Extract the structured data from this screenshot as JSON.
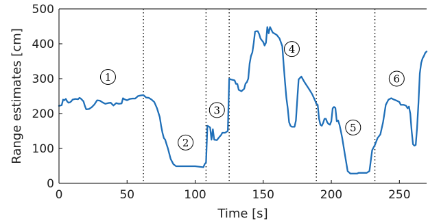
{
  "chart_data": {
    "type": "line",
    "title": "",
    "xlabel": "Time [s]",
    "ylabel": "Range estimates [cm]",
    "xlim": [
      0,
      270
    ],
    "ylim": [
      0,
      500
    ],
    "xticks": [
      0,
      50,
      100,
      150,
      200,
      250
    ],
    "yticks": [
      0,
      100,
      200,
      300,
      400,
      500
    ],
    "grid": false,
    "color": "#1f6fb8",
    "series": [
      {
        "x": [
          0,
          2,
          3,
          4,
          5,
          6,
          7,
          8,
          9,
          10,
          12,
          14,
          15,
          16,
          18,
          19,
          20,
          22,
          24,
          26,
          28,
          30,
          32,
          34,
          36,
          38,
          40,
          42,
          44,
          46,
          47,
          48,
          50,
          52,
          54,
          56,
          58,
          60,
          62,
          64,
          66,
          68,
          70,
          72,
          74,
          75,
          76,
          77,
          78,
          79,
          80,
          82,
          84,
          86,
          88,
          90,
          95,
          100,
          104,
          106,
          107,
          108,
          109,
          110,
          111,
          112,
          113,
          114,
          116,
          118,
          119,
          120,
          122,
          124,
          125,
          126,
          128,
          129,
          130,
          131,
          132,
          134,
          136,
          137,
          138,
          139,
          140,
          141,
          142,
          143,
          144,
          145,
          146,
          147,
          148,
          149,
          150,
          151,
          152,
          153,
          154,
          155,
          156,
          157,
          158,
          160,
          162,
          164,
          165,
          166,
          167,
          168,
          169,
          170,
          171,
          172,
          173,
          174,
          175,
          176,
          177,
          178,
          180,
          182,
          184,
          186,
          188,
          189,
          190,
          191,
          192,
          193,
          194,
          195,
          196,
          197,
          198,
          199,
          200,
          201,
          202,
          203,
          204,
          205,
          206,
          207,
          208,
          210,
          212,
          214,
          216,
          218,
          219,
          220,
          222,
          224,
          226,
          228,
          230,
          232,
          234,
          236,
          238,
          240,
          242,
          244,
          246,
          248,
          250,
          251,
          252,
          253,
          254,
          255,
          256,
          257,
          258,
          259,
          260,
          261,
          262,
          263,
          264,
          265,
          266,
          267,
          268,
          269,
          270
        ],
        "y": [
          222,
          224,
          240,
          238,
          242,
          235,
          231,
          232,
          235,
          240,
          242,
          241,
          245,
          243,
          235,
          222,
          212,
          213,
          218,
          226,
          238,
          237,
          232,
          228,
          230,
          231,
          223,
          230,
          228,
          229,
          244,
          241,
          238,
          242,
          243,
          243,
          250,
          252,
          253,
          246,
          245,
          240,
          233,
          215,
          190,
          165,
          145,
          130,
          125,
          112,
          100,
          70,
          55,
          49,
          49,
          49,
          49,
          49,
          47,
          46,
          55,
          60,
          165,
          163,
          160,
          125,
          155,
          125,
          124,
          134,
          138,
          145,
          145,
          150,
          300,
          298,
          296,
          295,
          285,
          285,
          268,
          264,
          271,
          286,
          290,
          300,
          343,
          365,
          375,
          402,
          435,
          436,
          436,
          428,
          415,
          410,
          405,
          395,
          403,
          448,
          430,
          448,
          440,
          432,
          430,
          425,
          415,
          393,
          340,
          290,
          245,
          215,
          175,
          165,
          162,
          162,
          162,
          180,
          240,
          298,
          302,
          306,
          292,
          280,
          268,
          255,
          238,
          228,
          225,
          185,
          168,
          165,
          173,
          185,
          185,
          175,
          170,
          168,
          178,
          215,
          219,
          216,
          178,
          180,
          168,
          150,
          130,
          82,
          35,
          28,
          28,
          28,
          28,
          30,
          30,
          30,
          30,
          35,
          95,
          110,
          130,
          140,
          175,
          225,
          240,
          244,
          240,
          237,
          233,
          225,
          225,
          225,
          224,
          222,
          215,
          220,
          200,
          150,
          112,
          108,
          110,
          160,
          230,
          315,
          345,
          358,
          365,
          374,
          378
        ]
      }
    ],
    "vlines": [
      62,
      108,
      125,
      189,
      232
    ],
    "markers": [
      {
        "label": "1",
        "x": 36,
        "y": 305
      },
      {
        "label": "2",
        "x": 93,
        "y": 117
      },
      {
        "label": "3",
        "x": 116,
        "y": 210
      },
      {
        "label": "4",
        "x": 171,
        "y": 385
      },
      {
        "label": "5",
        "x": 216,
        "y": 160
      },
      {
        "label": "6",
        "x": 248,
        "y": 300
      }
    ]
  }
}
